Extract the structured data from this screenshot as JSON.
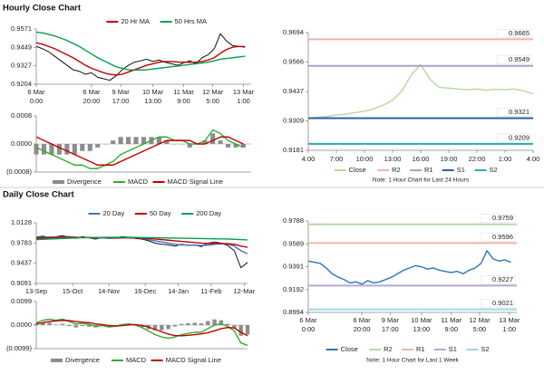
{
  "headings": [
    "Hourly Close Chart",
    "Daily Close Chart"
  ],
  "chart_data": [
    {
      "type": "line",
      "legend": "top",
      "x": [
        0,
        4,
        8,
        12,
        16,
        20,
        24,
        28,
        32,
        36,
        40,
        44,
        48,
        52,
        56,
        60,
        64,
        68,
        72,
        76,
        80,
        84,
        88,
        92,
        96,
        100,
        104,
        108,
        112,
        116,
        120,
        124,
        128,
        132,
        136
      ],
      "xlim": [
        0,
        140
      ],
      "xticks": [
        {
          "value": 0,
          "label": [
            "6 Mar",
            "0:00"
          ]
        },
        {
          "value": 36,
          "label": [
            "6 Mar",
            "20:00"
          ]
        },
        {
          "value": 55,
          "label": [
            "9 Mar",
            "17:00"
          ]
        },
        {
          "value": 76,
          "label": [
            "10 Mar",
            "13:00"
          ]
        },
        {
          "value": 96,
          "label": [
            "11 Mar",
            "9:00"
          ]
        },
        {
          "value": 115,
          "label": [
            "12 Mar",
            "5:00"
          ]
        },
        {
          "value": 135,
          "label": [
            "13 Mar",
            "1:00"
          ]
        }
      ],
      "ylim": [
        0.9204,
        0.9571
      ],
      "yticks": [
        0.9204,
        0.9327,
        0.9449,
        0.9571
      ],
      "series": [
        {
          "color": "#111111",
          "values": [
            0.9455,
            0.944,
            0.942,
            0.939,
            0.936,
            0.933,
            0.93,
            0.929,
            0.927,
            0.928,
            0.925,
            0.924,
            0.923,
            0.926,
            0.93,
            0.933,
            0.935,
            0.936,
            0.937,
            0.9355,
            0.9365,
            0.935,
            0.934,
            0.933,
            0.9345,
            0.936,
            0.934,
            0.938,
            0.94,
            0.944,
            0.954,
            0.949,
            0.946,
            0.9455,
            0.945
          ]
        },
        {
          "name": "20 Hr MA",
          "color": "#c00000",
          "values": [
            0.948,
            0.947,
            0.9455,
            0.944,
            0.942,
            0.94,
            0.938,
            0.9355,
            0.933,
            0.931,
            0.9295,
            0.928,
            0.927,
            0.9265,
            0.927,
            0.9285,
            0.93,
            0.9315,
            0.933,
            0.934,
            0.935,
            0.9355,
            0.9355,
            0.9352,
            0.935,
            0.935,
            0.935,
            0.9355,
            0.9365,
            0.938,
            0.941,
            0.9435,
            0.945,
            0.9455,
            0.9455
          ]
        },
        {
          "name": "50 Hrs MA",
          "color": "#00a050",
          "values": [
            0.955,
            0.9545,
            0.9535,
            0.9525,
            0.951,
            0.9495,
            0.9475,
            0.9455,
            0.943,
            0.9405,
            0.938,
            0.936,
            0.934,
            0.932,
            0.931,
            0.93,
            0.9298,
            0.9298,
            0.93,
            0.9305,
            0.931,
            0.9315,
            0.932,
            0.9325,
            0.933,
            0.9335,
            0.934,
            0.9345,
            0.935,
            0.936,
            0.937,
            0.9375,
            0.938,
            0.9385,
            0.939
          ]
        }
      ]
    },
    {
      "type": "combo",
      "legend": "bottom",
      "x": [
        0,
        5,
        10,
        15,
        20,
        25,
        30,
        35,
        40,
        45,
        50,
        55,
        60,
        65,
        70,
        75,
        80,
        85,
        90,
        95,
        100,
        105,
        110,
        115,
        120,
        125,
        130,
        135
      ],
      "xlim": [
        0,
        140
      ],
      "ylim": [
        -0.0008,
        0.0008
      ],
      "yticks": [
        {
          "value": 0.0008,
          "label": "0.0008"
        },
        {
          "value": 0,
          "label": "0.0000"
        },
        {
          "value": -0.0008,
          "label": "(0.0008)"
        }
      ],
      "series": [
        {
          "name": "Divergence",
          "type": "bar",
          "color": "#8c8c8c",
          "values": [
            -0.0003,
            -0.0003,
            -0.0003,
            -0.0003,
            -0.0003,
            -0.0003,
            -0.0002,
            -0.0002,
            -0.0001,
            0.0,
            0.0001,
            0.0002,
            0.0002,
            0.0002,
            0.0002,
            0.0002,
            0.0002,
            0.0001,
            0.0,
            0.0,
            -0.0001,
            0.0,
            0.0001,
            0.0003,
            0.0001,
            -0.0001,
            -0.0001,
            -0.0001
          ]
        },
        {
          "name": "MACD",
          "color": "#33aa33",
          "values": [
            -0.0001,
            -0.0002,
            -0.0003,
            -0.0004,
            -0.0005,
            -0.0006,
            -0.0006,
            -0.0007,
            -0.0007,
            -0.0006,
            -0.0005,
            -0.0003,
            -0.0002,
            -0.0001,
            0.0,
            0.0001,
            0.0002,
            0.0002,
            0.0001,
            0.0001,
            0.0,
            0.0,
            0.0001,
            0.0004,
            0.0003,
            0.0001,
            0.0,
            -0.0001
          ]
        },
        {
          "name": "MACD Signal Line",
          "color": "#c00000",
          "values": [
            0.0002,
            0.0001,
            0.0,
            -0.0001,
            -0.0002,
            -0.0003,
            -0.0004,
            -0.0005,
            -0.0006,
            -0.0006,
            -0.0006,
            -0.0005,
            -0.0004,
            -0.0003,
            -0.0002,
            -0.0001,
            0.0,
            0.0001,
            0.0001,
            0.0001,
            0.0001,
            0.0,
            0.0,
            0.0001,
            0.0002,
            0.0002,
            0.0001,
            0.0
          ]
        }
      ]
    },
    {
      "type": "line",
      "legend": "bottom",
      "note": "Note: 1 Hour Chart for Last 24 Hours",
      "categories": [
        "4:00",
        null,
        null,
        "7:00",
        null,
        null,
        "10:00",
        null,
        null,
        "13:00",
        null,
        null,
        "16:00",
        null,
        null,
        "19:00",
        null,
        null,
        "22:00",
        null,
        null,
        "1:00",
        null,
        null,
        "4:00"
      ],
      "ylim": [
        0.9181,
        0.9694
      ],
      "yticks": [
        0.9181,
        0.9309,
        0.9437,
        0.9566,
        0.9694
      ],
      "series": [
        {
          "name": "Close",
          "color": "#b5d99c",
          "values": [
            0.9322,
            0.9325,
            0.9328,
            0.9335,
            0.9338,
            0.9345,
            0.9352,
            0.9362,
            0.9378,
            0.94,
            0.944,
            0.951,
            0.9555,
            0.949,
            0.9455,
            0.9452,
            0.9448,
            0.9445,
            0.9448,
            0.9443,
            0.9447,
            0.9445,
            0.9448,
            0.944,
            0.9428
          ]
        },
        {
          "name": "R2",
          "color": "#f2b2b2",
          "value": 0.9665
        },
        {
          "name": "R1",
          "color": "#a9a0c8",
          "value": 0.9549
        },
        {
          "name": "S1",
          "color": "#2e5fa8",
          "value": 0.9321
        },
        {
          "name": "S2",
          "color": "#2aa7b8",
          "value": 0.9209
        }
      ]
    },
    {
      "type": "line",
      "legend": "top",
      "x": [
        0,
        4,
        8,
        12,
        16,
        20,
        24,
        28,
        32,
        36,
        40,
        44,
        48,
        52,
        56,
        60,
        64,
        68,
        72,
        76,
        80,
        84,
        88,
        92,
        96,
        100,
        104,
        108,
        112,
        116,
        120,
        124,
        128
      ],
      "xlim": [
        0,
        128
      ],
      "xticks": [
        {
          "value": 0,
          "label": "13-Sep"
        },
        {
          "value": 22,
          "label": "15-Oct"
        },
        {
          "value": 44,
          "label": "14-Nov"
        },
        {
          "value": 66,
          "label": "16-Dec"
        },
        {
          "value": 86,
          "label": "14-Jan"
        },
        {
          "value": 106,
          "label": "11-Feb"
        },
        {
          "value": 126,
          "label": "12-Mar"
        }
      ],
      "ylim": [
        0.9091,
        1.0128
      ],
      "yticks": [
        0.9091,
        0.9437,
        0.9783,
        1.0128
      ],
      "series": [
        {
          "color": "#111111",
          "values": [
            0.988,
            0.99,
            0.987,
            0.989,
            0.991,
            0.988,
            0.986,
            0.989,
            0.987,
            0.985,
            0.988,
            0.986,
            0.987,
            0.989,
            0.988,
            0.986,
            0.985,
            0.982,
            0.978,
            0.976,
            0.975,
            0.973,
            0.976,
            0.974,
            0.975,
            0.972,
            0.978,
            0.98,
            0.978,
            0.974,
            0.965,
            0.936,
            0.945
          ]
        },
        {
          "name": "20 Day",
          "color": "#4472c4",
          "values": [
            0.987,
            0.988,
            0.9885,
            0.9885,
            0.989,
            0.989,
            0.988,
            0.9875,
            0.9875,
            0.987,
            0.987,
            0.9865,
            0.9865,
            0.987,
            0.9875,
            0.987,
            0.986,
            0.984,
            0.982,
            0.98,
            0.978,
            0.976,
            0.975,
            0.9745,
            0.9745,
            0.974,
            0.9745,
            0.976,
            0.977,
            0.9765,
            0.973,
            0.965,
            0.96
          ]
        },
        {
          "name": "50 Day",
          "color": "#c00000",
          "values": [
            0.986,
            0.9865,
            0.987,
            0.9875,
            0.988,
            0.988,
            0.988,
            0.9878,
            0.9876,
            0.9875,
            0.9874,
            0.9872,
            0.987,
            0.987,
            0.987,
            0.9868,
            0.9865,
            0.986,
            0.985,
            0.984,
            0.983,
            0.982,
            0.981,
            0.98,
            0.979,
            0.978,
            0.9775,
            0.9775,
            0.9775,
            0.977,
            0.976,
            0.973,
            0.971
          ]
        },
        {
          "name": "200 Day",
          "color": "#00a050",
          "values": [
            0.984,
            0.9845,
            0.985,
            0.9855,
            0.986,
            0.9865,
            0.987,
            0.9872,
            0.9874,
            0.9876,
            0.9878,
            0.988,
            0.988,
            0.988,
            0.988,
            0.9878,
            0.9876,
            0.9874,
            0.9872,
            0.987,
            0.9868,
            0.9866,
            0.9864,
            0.9862,
            0.986,
            0.9858,
            0.9856,
            0.9854,
            0.9852,
            0.985,
            0.9845,
            0.984,
            0.9835
          ]
        }
      ]
    },
    {
      "type": "combo",
      "legend": "bottom",
      "x": [
        0,
        4,
        8,
        12,
        16,
        20,
        24,
        28,
        32,
        36,
        40,
        44,
        48,
        52,
        56,
        60,
        64,
        68,
        72,
        76,
        80,
        84,
        88,
        92,
        96,
        100,
        104,
        108,
        112,
        116,
        120,
        124,
        128
      ],
      "xlim": [
        0,
        128
      ],
      "ylim": [
        -0.0099,
        0.0099
      ],
      "yticks": [
        {
          "value": 0.0099,
          "label": "0.0099"
        },
        {
          "value": 0,
          "label": "0.0000"
        },
        {
          "value": -0.0099,
          "label": "(0.0099)"
        }
      ],
      "series": [
        {
          "name": "Divergence",
          "type": "bar",
          "color": "#8c8c8c",
          "values": [
            0.0005,
            0.001,
            0.001,
            0.0002,
            0.0005,
            -0.0004,
            -0.001,
            -0.0004,
            -0.0007,
            -0.001,
            -0.0004,
            -0.0006,
            -0.0001,
            0.0004,
            0.0004,
            -0.0002,
            -0.0009,
            -0.0017,
            -0.0022,
            -0.0022,
            -0.0017,
            -0.0006,
            0.0005,
            0.0008,
            0.001,
            0.0007,
            0.0017,
            0.0024,
            0.002,
            0.0005,
            -0.0013,
            -0.0045,
            -0.004
          ]
        },
        {
          "name": "MACD",
          "color": "#33aa33",
          "values": [
            0.001,
            0.002,
            0.0025,
            0.002,
            0.0025,
            0.0015,
            0.0005,
            0.0008,
            0.0003,
            -0.0005,
            -0.0002,
            -0.0008,
            -0.0005,
            0.0002,
            0.0005,
            0.0,
            -0.001,
            -0.0025,
            -0.004,
            -0.005,
            -0.0055,
            -0.005,
            -0.004,
            -0.0035,
            -0.003,
            -0.003,
            -0.0015,
            0.0,
            0.0005,
            -0.0005,
            -0.0025,
            -0.0075,
            -0.0085
          ]
        },
        {
          "name": "MACD Signal Line",
          "color": "#c00000",
          "values": [
            0.0005,
            0.001,
            0.0015,
            0.0018,
            0.002,
            0.0019,
            0.0015,
            0.0012,
            0.001,
            0.0005,
            0.0002,
            -0.0002,
            -0.0004,
            -0.0002,
            0.0001,
            0.0002,
            -0.0001,
            -0.0008,
            -0.0018,
            -0.0028,
            -0.0038,
            -0.0044,
            -0.0045,
            -0.0043,
            -0.004,
            -0.0037,
            -0.0032,
            -0.0024,
            -0.0015,
            -0.001,
            -0.0012,
            -0.003,
            -0.0045
          ]
        }
      ]
    },
    {
      "type": "line",
      "legend": "bottom",
      "note": "Note: 1 Hour Chart for Last 1 Week",
      "x": [
        0,
        4,
        8,
        12,
        16,
        20,
        24,
        28,
        32,
        36,
        40,
        44,
        48,
        52,
        56,
        60,
        64,
        68,
        72,
        76,
        80,
        84,
        88,
        92,
        96,
        100,
        104,
        108,
        112,
        116,
        120,
        124,
        128,
        132,
        136
      ],
      "xlim": [
        0,
        140
      ],
      "xticks": [
        {
          "value": 0,
          "label": [
            "6 Mar",
            "0:00"
          ]
        },
        {
          "value": 36,
          "label": [
            "6 Mar",
            "20:00"
          ]
        },
        {
          "value": 55,
          "label": [
            "9 Mar",
            "17:00"
          ]
        },
        {
          "value": 76,
          "label": [
            "10 Mar",
            "13:00"
          ]
        },
        {
          "value": 96,
          "label": [
            "11 Mar",
            "9:00"
          ]
        },
        {
          "value": 115,
          "label": [
            "12 Mar",
            "5:00"
          ]
        },
        {
          "value": 135,
          "label": [
            "13 Mar",
            "1:00"
          ]
        }
      ],
      "ylim": [
        0.8994,
        0.9788
      ],
      "yticks": [
        0.8994,
        0.9192,
        0.9391,
        0.9589,
        0.9788
      ],
      "series": [
        {
          "name": "Close",
          "color": "#2e75b6",
          "values": [
            0.944,
            0.943,
            0.942,
            0.938,
            0.933,
            0.93,
            0.928,
            0.925,
            0.926,
            0.924,
            0.927,
            0.925,
            0.926,
            0.928,
            0.93,
            0.933,
            0.936,
            0.938,
            0.94,
            0.939,
            0.937,
            0.938,
            0.936,
            0.935,
            0.934,
            0.935,
            0.933,
            0.936,
            0.938,
            0.942,
            0.953,
            0.946,
            0.944,
            0.945,
            0.943
          ]
        },
        {
          "name": "R2",
          "color": "#b6d7a8",
          "value": 0.9759
        },
        {
          "name": "R1",
          "color": "#f2b2b2",
          "value": 0.9596
        },
        {
          "name": "S1",
          "color": "#b4a7d6",
          "value": 0.9227
        },
        {
          "name": "S2",
          "color": "#9fd5e8",
          "value": 0.9021
        }
      ]
    }
  ]
}
